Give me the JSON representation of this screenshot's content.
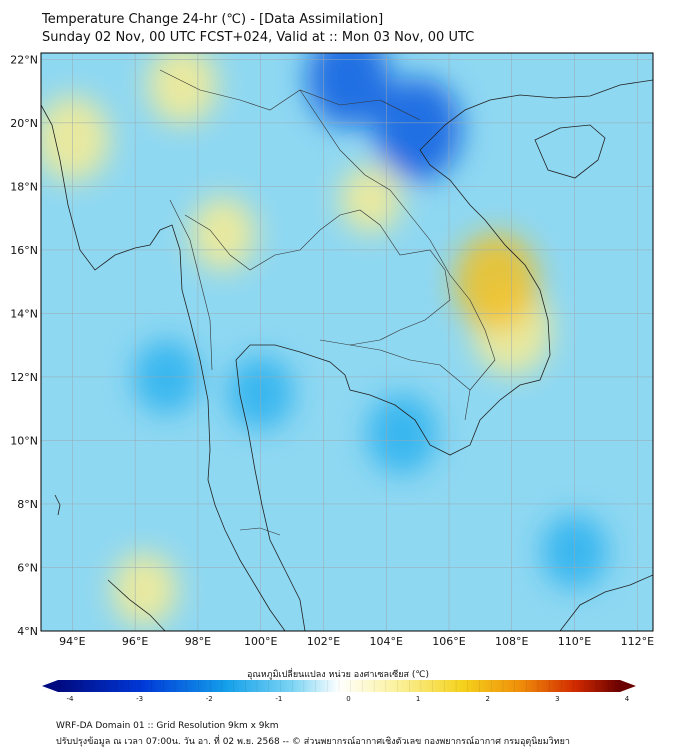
{
  "header": {
    "title": "Temperature Change 24-hr (℃) - [Data Assimilation]",
    "subtitle": "Sunday 02 Nov, 00 UTC FCST+024, Valid at :: Mon 03 Nov, 00 UTC"
  },
  "map": {
    "lon_range": [
      93,
      112.5
    ],
    "lat_range": [
      4,
      22.2
    ],
    "lat_ticks": [
      "22°N",
      "20°N",
      "18°N",
      "16°N",
      "14°N",
      "12°N",
      "10°N",
      "8°N",
      "6°N",
      "4°N"
    ],
    "lat_values": [
      22,
      20,
      18,
      16,
      14,
      12,
      10,
      8,
      6,
      4
    ],
    "lon_ticks": [
      "94°E",
      "96°E",
      "98°E",
      "100°E",
      "102°E",
      "104°E",
      "106°E",
      "108°E",
      "110°E",
      "112°E"
    ],
    "lon_values": [
      94,
      96,
      98,
      100,
      102,
      104,
      106,
      108,
      110,
      112
    ],
    "grid": true,
    "background_color": "#8fd8f2",
    "features": [
      {
        "kind": "cold",
        "lon": 102.8,
        "lat": 21.4,
        "value": -1.8
      },
      {
        "kind": "cold",
        "lon": 105.0,
        "lat": 19.8,
        "value": -2.0
      },
      {
        "kind": "cold",
        "lon": 104.5,
        "lat": 10.2,
        "value": -1.2
      },
      {
        "kind": "cold",
        "lon": 100.0,
        "lat": 11.5,
        "value": -1.0
      },
      {
        "kind": "cold",
        "lon": 97.0,
        "lat": 12.0,
        "value": -1.0
      },
      {
        "kind": "cold",
        "lon": 110.0,
        "lat": 6.5,
        "value": -1.0
      },
      {
        "kind": "warm",
        "lon": 108.0,
        "lat": 13.5,
        "value": 1.6
      },
      {
        "kind": "warm",
        "lon": 107.5,
        "lat": 15.0,
        "value": 1.8
      },
      {
        "kind": "warm",
        "lon": 94.0,
        "lat": 19.5,
        "value": 1.4
      },
      {
        "kind": "warm",
        "lon": 97.5,
        "lat": 21.2,
        "value": 1.2
      },
      {
        "kind": "warm",
        "lon": 98.8,
        "lat": 16.5,
        "value": 1.0
      },
      {
        "kind": "warm",
        "lon": 103.5,
        "lat": 17.6,
        "value": 0.8
      },
      {
        "kind": "warm",
        "lon": 96.3,
        "lat": 5.3,
        "value": 1.0
      }
    ]
  },
  "colorbar": {
    "title": "อุณหภูมิเปลี่ยนแปลง หน่วย องศาเซลเซียส (℃)",
    "min": -4,
    "max": 4,
    "ticks": [
      "-4",
      "-3",
      "-2",
      "-1",
      "0",
      "1",
      "2",
      "3",
      "4"
    ],
    "tick_values": [
      -4,
      -3,
      -2,
      -1,
      0,
      1,
      2,
      3,
      4
    ]
  },
  "footer": {
    "line1": "WRF-DA Domain 01 :: Grid Resolution 9km x 9km",
    "line2": "ปรับปรุงข้อมูล ณ เวลา 07:00น. วัน อา. ที่ 02 พ.ย. 2568 -- © ส่วนพยากรณ์อากาศเชิงตัวเลข กองพยากรณ์อากาศ กรมอุตุนิยมวิทยา"
  }
}
